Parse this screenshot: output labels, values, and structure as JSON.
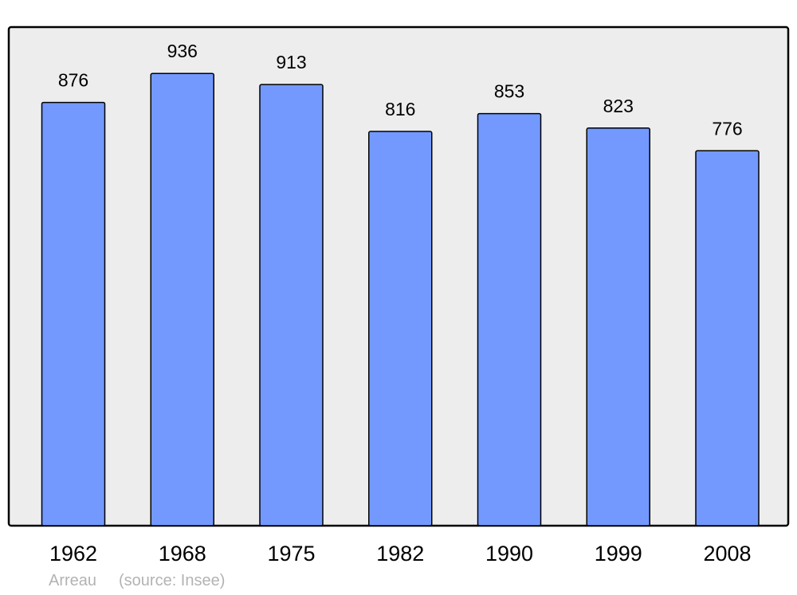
{
  "chart_data": {
    "type": "bar",
    "categories": [
      "1962",
      "1968",
      "1975",
      "1982",
      "1990",
      "1999",
      "2008"
    ],
    "values": [
      876,
      936,
      913,
      816,
      853,
      823,
      776
    ],
    "title": "",
    "xlabel": "",
    "ylabel": "",
    "ylim": [
      0,
      1032
    ],
    "grid": false,
    "data_labels": true,
    "colors": {
      "bar": "#7399ff",
      "plot_background": "#ededed",
      "border": "#000000"
    }
  },
  "caption": {
    "place": "Arreau",
    "source": "(source: Insee)"
  }
}
